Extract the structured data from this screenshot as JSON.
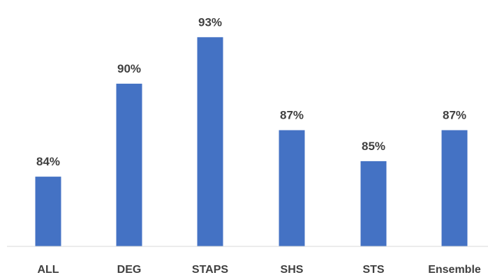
{
  "chart_data": {
    "type": "bar",
    "categories": [
      "ALL",
      "DEG",
      "STAPS",
      "SHS",
      "STS",
      "Ensemble"
    ],
    "values": [
      84,
      90,
      93,
      87,
      85,
      87
    ],
    "data_labels": [
      "84%",
      "90%",
      "93%",
      "87%",
      "85%",
      "87%"
    ],
    "title": "",
    "xlabel": "",
    "ylabel": "",
    "grid": false,
    "legend": "none",
    "bar_color": "#4472C4"
  }
}
